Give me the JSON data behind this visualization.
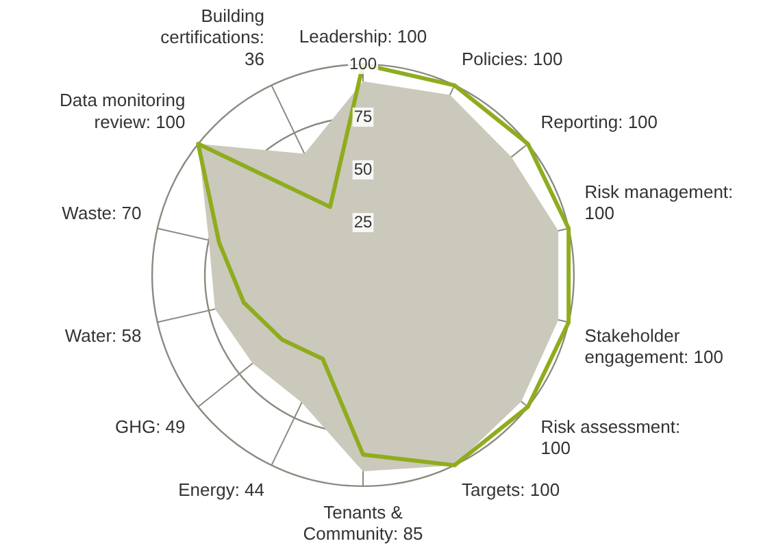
{
  "chart_data": {
    "type": "radar",
    "categories": [
      "Leadership: 100",
      "Policies: 100",
      "Reporting: 100",
      "Risk management: 100",
      "Stakeholder engagement: 100",
      "Risk assessment: 100",
      "Targets: 100",
      "Tenants & Community: 85",
      "Energy: 44",
      "GHG: 49",
      "Water: 58",
      "Waste: 70",
      "Data monitoring review: 100",
      "Building certifications: 36"
    ],
    "series": [
      {
        "color": "#cbc9bc",
        "type": "area",
        "values": [
          92,
          95,
          90,
          95,
          95,
          96,
          100,
          93,
          67,
          67,
          72,
          75,
          100,
          64
        ]
      },
      {
        "color": "#8fac1e",
        "values": [
          100,
          100,
          100,
          100,
          100,
          100,
          100,
          85,
          44,
          49,
          58,
          70,
          100,
          36
        ]
      }
    ],
    "ylim": [
      0,
      100
    ],
    "yticks": [
      25,
      50,
      75,
      100
    ],
    "grid": true,
    "legend": false
  }
}
